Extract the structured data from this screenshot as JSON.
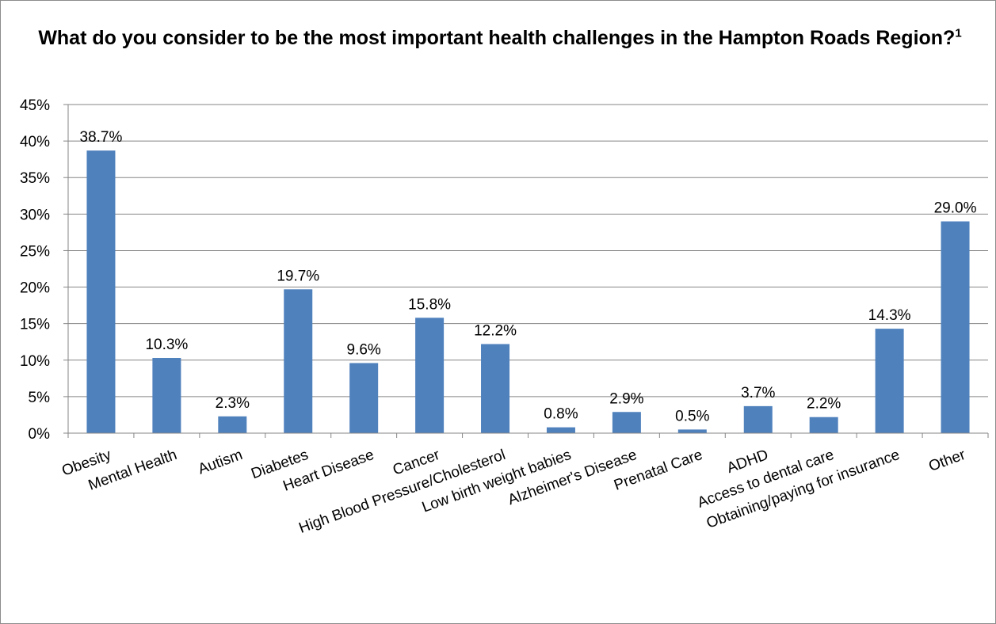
{
  "chart_data": {
    "type": "bar",
    "title": "What do you consider to be the most important health challenges in the Hampton Roads Region?",
    "title_superscript": "1",
    "xlabel": "",
    "ylabel": "",
    "categories": [
      "Obesity",
      "Mental Health",
      "Autism",
      "Diabetes",
      "Heart Disease",
      "Cancer",
      "High Blood Pressure/Cholesterol",
      "Low birth weight babies",
      "Alzheimer's Disease",
      "Prenatal Care",
      "ADHD",
      "Access to dental care",
      "Obtaining/paying for insurance",
      "Other"
    ],
    "values": [
      38.7,
      10.3,
      2.3,
      19.7,
      9.6,
      15.8,
      12.2,
      0.8,
      2.9,
      0.5,
      3.7,
      2.2,
      14.3,
      29.0
    ],
    "data_labels": [
      "38.7%",
      "10.3%",
      "2.3%",
      "19.7%",
      "9.6%",
      "15.8%",
      "12.2%",
      "0.8%",
      "2.9%",
      "0.5%",
      "3.7%",
      "2.2%",
      "14.3%",
      "29.0%"
    ],
    "y_ticks": [
      "0%",
      "5%",
      "10%",
      "15%",
      "20%",
      "25%",
      "30%",
      "35%",
      "40%",
      "45%"
    ],
    "ylim": [
      0,
      45
    ],
    "y_tick_step": 5,
    "grid": true,
    "legend": "none",
    "bar_color": "#4f81bd",
    "grid_color": "#868686"
  }
}
